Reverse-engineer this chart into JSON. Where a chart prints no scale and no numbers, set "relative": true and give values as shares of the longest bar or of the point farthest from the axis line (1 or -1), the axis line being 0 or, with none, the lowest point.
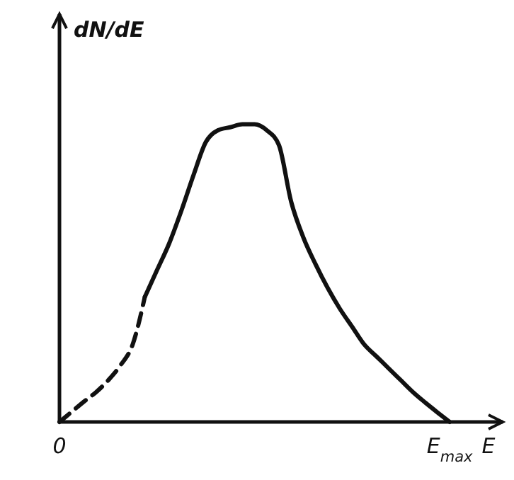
{
  "chart_data": {
    "type": "line",
    "relative": true,
    "ylabel": "dN/dE",
    "xlabel": "E",
    "categories": [
      "0",
      null,
      null,
      null,
      null,
      null,
      null,
      null,
      null,
      null,
      null,
      null,
      null,
      null,
      null,
      null,
      null,
      null,
      null,
      null,
      null,
      null,
      null,
      null,
      null,
      null,
      null,
      null,
      null,
      null,
      null,
      null,
      "E$_{max}$",
      null,
      null,
      null,
      null
    ],
    "series": [
      {
        "color": "#111111",
        "line_style": "dashed",
        "values": [
          0,
          0.034,
          0.068,
          0.1,
          0.14,
          0.19,
          0.26,
          0.42,
          null,
          null,
          null,
          null,
          null,
          null,
          null,
          null,
          null,
          null,
          null,
          null,
          null,
          null,
          null,
          null,
          null,
          null,
          null,
          null,
          null,
          null,
          null,
          null,
          null,
          null,
          null,
          null,
          null
        ]
      },
      {
        "color": "#111111",
        "line_style": "solid",
        "values": [
          null,
          null,
          null,
          null,
          null,
          null,
          null,
          0.42,
          0.51,
          0.6,
          0.71,
          0.83,
          0.94,
          0.98,
          0.99,
          1,
          1,
          0.98,
          0.93,
          0.74,
          0.62,
          0.53,
          0.45,
          0.38,
          0.32,
          0.26,
          0.22,
          0.18,
          0.14,
          0.1,
          0.065,
          0.032,
          0,
          null,
          null,
          null,
          null
        ]
      }
    ]
  }
}
